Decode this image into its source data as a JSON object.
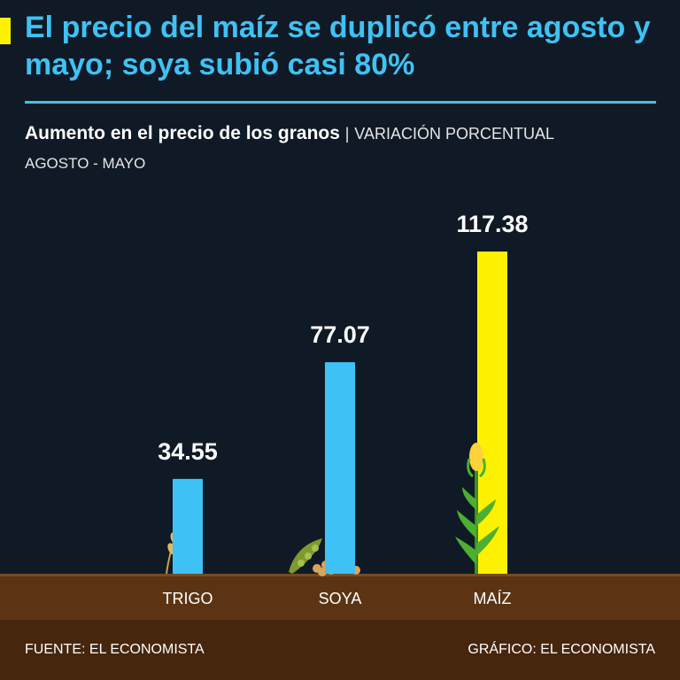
{
  "header": {
    "headline": "El precio del maíz se duplicó entre agosto y mayo; soya subió casi 80%",
    "subtitle_bold": "Aumento en el precio de los granos",
    "subtitle_separator": "|",
    "subtitle_light": "VARIACIÓN PORCENTUAL",
    "period": "AGOSTO - MAYO"
  },
  "footer": {
    "source": "FUENTE: EL ECONOMISTA",
    "credit": "GRÁFICO: EL ECONOMISTA"
  },
  "chart_data": {
    "type": "bar",
    "title": "Aumento en el precio de los granos",
    "subtitle": "VARIACIÓN PORCENTUAL",
    "categories": [
      "TRIGO",
      "SOYA",
      "MAÍZ"
    ],
    "values": [
      34.55,
      77.07,
      117.38
    ],
    "data_labels": [
      "34.55",
      "77.07",
      "117.38"
    ],
    "bar_colors": [
      "#3ec2f5",
      "#3ec2f5",
      "#fff200"
    ],
    "ylim": [
      0,
      120
    ],
    "grid": false,
    "legend": "none",
    "category_icons": [
      "wheat-icon",
      "soybean-icon",
      "corn-plant-icon"
    ]
  },
  "colors": {
    "background": "#0f1a26",
    "accent_blue": "#3ec2f5",
    "accent_yellow": "#fff200",
    "ground_top": "#5c3413",
    "ground_bottom": "#46260d"
  }
}
